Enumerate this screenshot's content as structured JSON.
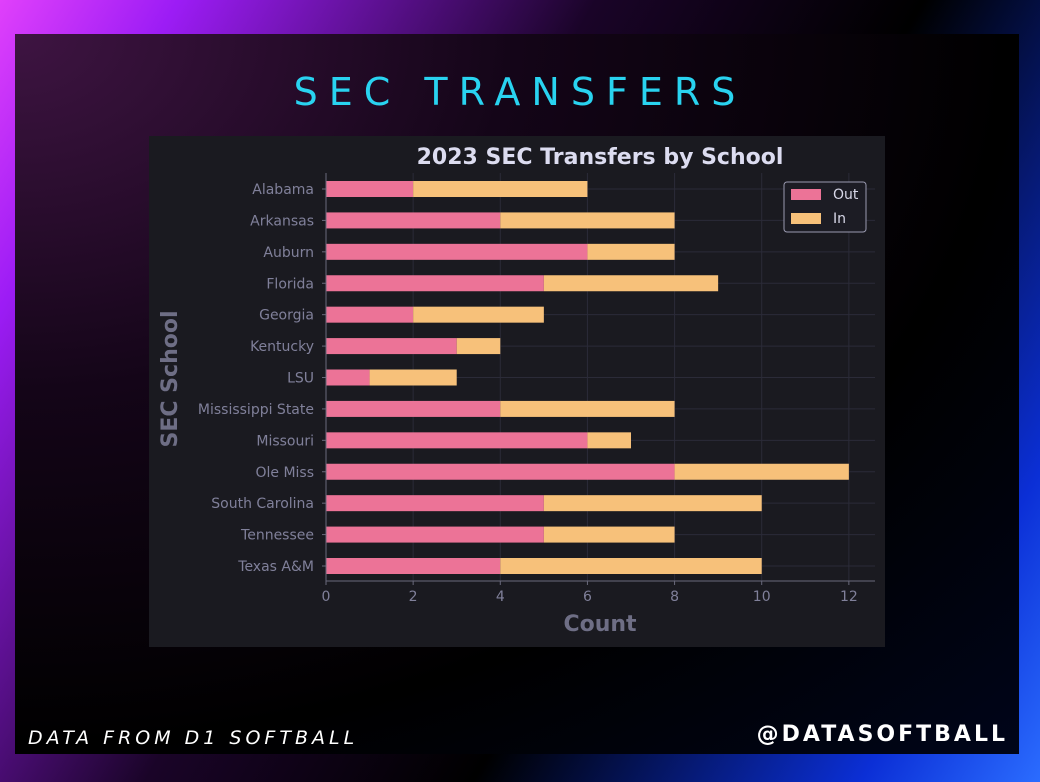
{
  "banner": {
    "title": "SEC TRANSFERS",
    "source": "DATA FROM D1 SOFTBALL",
    "handle": "@DATASOFTBALL"
  },
  "colors": {
    "out": "#ec7397",
    "in": "#f7c17a",
    "title": "#29d3f0",
    "panel": "#1a1a20"
  },
  "chart_data": {
    "type": "bar",
    "orientation": "horizontal",
    "stacked": true,
    "title": "2023 SEC Transfers by School",
    "xlabel": "Count",
    "ylabel": "SEC School",
    "xlim": [
      0,
      12.6
    ],
    "xticks": [
      0,
      2,
      4,
      6,
      8,
      10,
      12
    ],
    "grid": true,
    "legend_position": "top-right",
    "categories": [
      "Alabama",
      "Arkansas",
      "Auburn",
      "Florida",
      "Georgia",
      "Kentucky",
      "LSU",
      "Mississippi State",
      "Missouri",
      "Ole Miss",
      "South Carolina",
      "Tennessee",
      "Texas A&M"
    ],
    "series": [
      {
        "name": "Out",
        "values": [
          2,
          4,
          6,
          5,
          2,
          3,
          1,
          4,
          6,
          8,
          5,
          5,
          4
        ]
      },
      {
        "name": "In",
        "values": [
          4,
          4,
          2,
          4,
          3,
          1,
          2,
          4,
          1,
          4,
          5,
          3,
          6
        ]
      }
    ]
  }
}
